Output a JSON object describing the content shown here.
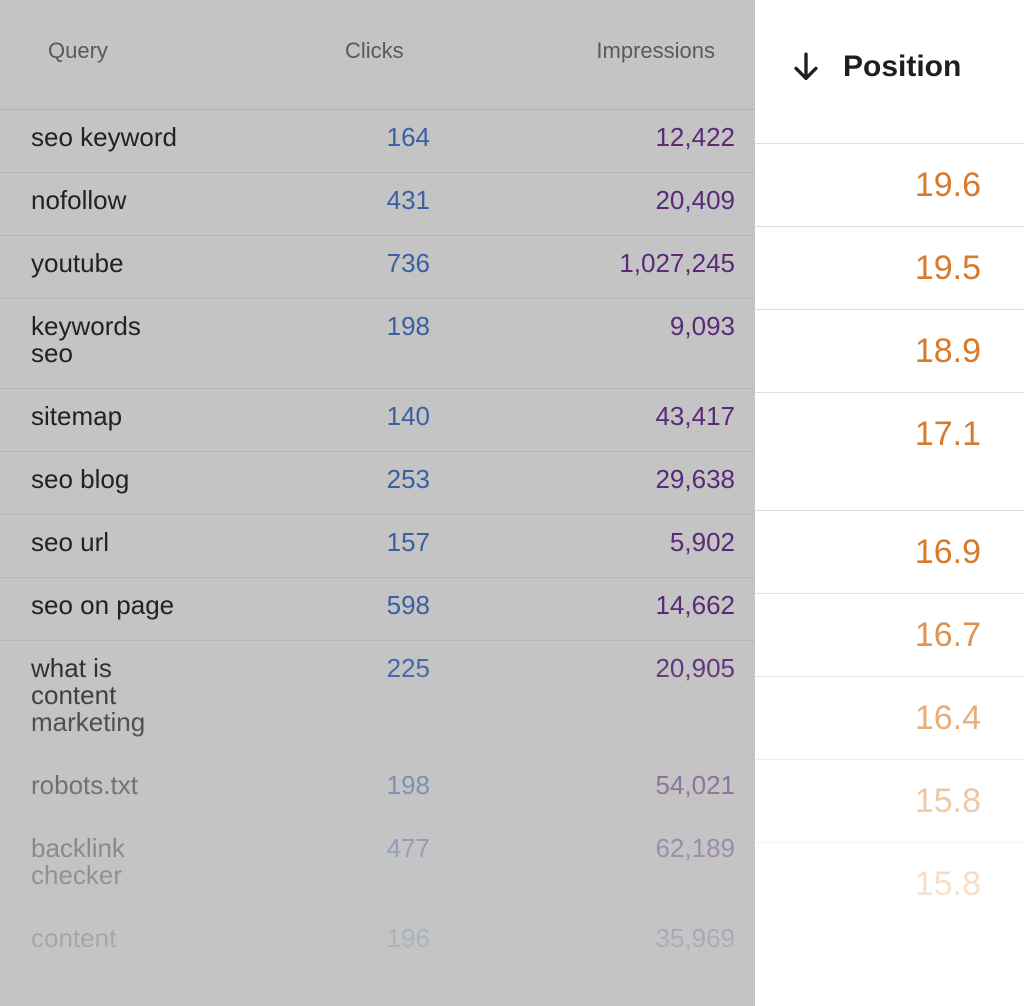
{
  "headers": {
    "query": "Query",
    "clicks": "Clicks",
    "impressions": "Impressions",
    "position": "Position"
  },
  "rows": [
    {
      "query": "seo keyword",
      "clicks": "164",
      "impressions": "12,422",
      "position": "19.6"
    },
    {
      "query": "nofollow",
      "clicks": "431",
      "impressions": "20,409",
      "position": "19.5"
    },
    {
      "query": "youtube",
      "clicks": "736",
      "impressions": "1,027,245",
      "position": "18.9"
    },
    {
      "query": "keywords seo",
      "clicks": "198",
      "impressions": "9,093",
      "position": "17.1"
    },
    {
      "query": "sitemap",
      "clicks": "140",
      "impressions": "43,417",
      "position": "16.9"
    },
    {
      "query": "seo blog",
      "clicks": "253",
      "impressions": "29,638",
      "position": "16.7"
    },
    {
      "query": "seo url",
      "clicks": "157",
      "impressions": "5,902",
      "position": "16.4"
    },
    {
      "query": "seo on page",
      "clicks": "598",
      "impressions": "14,662",
      "position": "15.8"
    },
    {
      "query": "what is content marketing",
      "clicks": "225",
      "impressions": "20,905",
      "position": "15.8"
    },
    {
      "query": "robots.txt",
      "clicks": "198",
      "impressions": "54,021"
    },
    {
      "query": "backlink checker",
      "clicks": "477",
      "impressions": "62,189"
    },
    {
      "query": "content",
      "clicks": "196",
      "impressions": "35,969"
    }
  ],
  "sort_icon": "arrow-down-icon",
  "colors": {
    "table_bg": "#c4c4c4",
    "clicks": "#3b5fa3",
    "impressions": "#5a2a78",
    "position": "#d97a2b"
  }
}
